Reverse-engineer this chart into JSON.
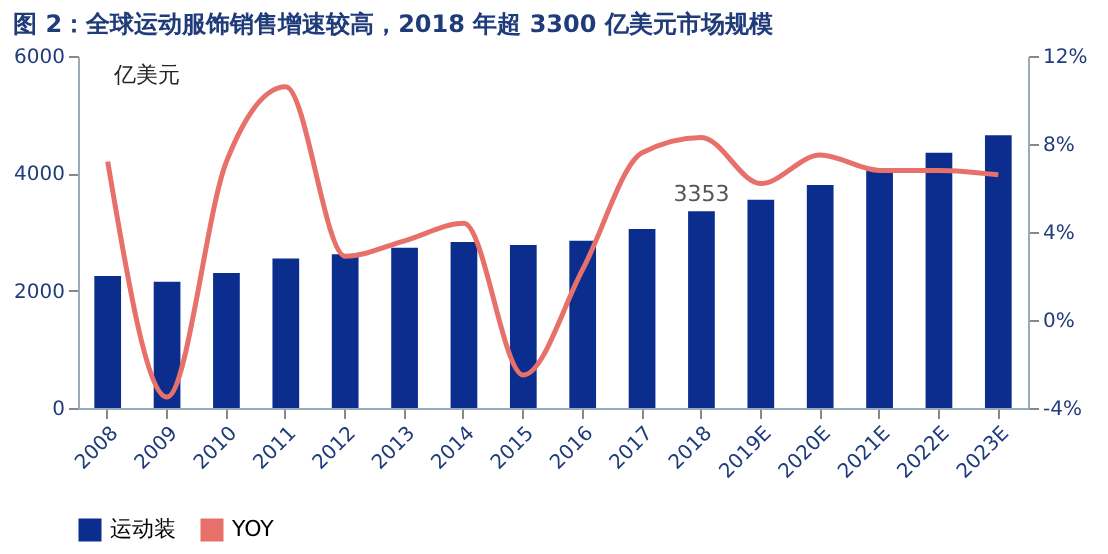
{
  "chart_data": {
    "type": "bar",
    "title": "图 2：全球运动服饰销售增速较高，2018 年超 3300 亿美元市场规模",
    "ylabel": "亿美元",
    "categories": [
      "2008",
      "2009",
      "2010",
      "2011",
      "2012",
      "2013",
      "2014",
      "2015",
      "2016",
      "2017",
      "2018",
      "2019E",
      "2020E",
      "2021E",
      "2022E",
      "2023E"
    ],
    "series": [
      {
        "name": "运动装",
        "color": "#0b2d8e",
        "values": [
          2250,
          2150,
          2300,
          2550,
          2620,
          2730,
          2830,
          2780,
          2850,
          3050,
          3353,
          3550,
          3800,
          4050,
          4350,
          4650
        ],
        "value_labels": [
          null,
          null,
          null,
          null,
          null,
          null,
          null,
          null,
          null,
          null,
          "3353",
          null,
          null,
          null,
          null,
          null
        ]
      },
      {
        "name": "YOY",
        "type": "line",
        "axis": "y2",
        "color": "#e8706a",
        "values": [
          7.2,
          -3.5,
          7.2,
          10.6,
          2.9,
          3.6,
          4.4,
          -2.5,
          2.3,
          7.6,
          8.3,
          6.2,
          7.5,
          6.8,
          6.8,
          6.6
        ]
      }
    ],
    "ylim": [
      0,
      6000
    ],
    "yticks": [
      0,
      2000,
      4000,
      6000
    ],
    "y2lim": [
      -4,
      12
    ],
    "y2ticks": [
      {
        "value": -4,
        "label": "-4%"
      },
      {
        "value": 0,
        "label": "0%"
      },
      {
        "value": 4,
        "label": "4%"
      },
      {
        "value": 8,
        "label": "8%"
      },
      {
        "value": 12,
        "label": "12%"
      }
    ],
    "grid": false,
    "legend": "bottom",
    "marker": "none",
    "line_style": "solid"
  }
}
